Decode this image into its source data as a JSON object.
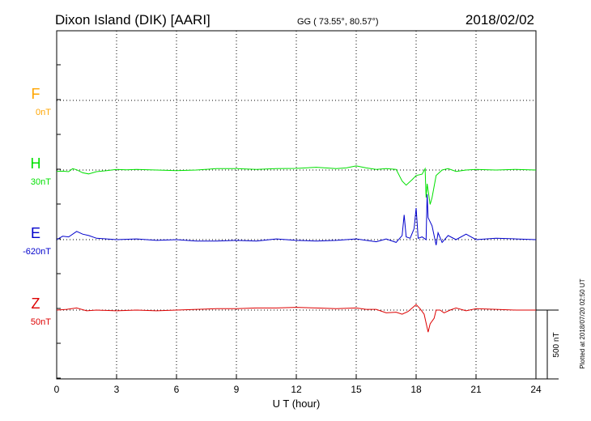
{
  "header": {
    "station": "Dixon Island (DIK)  [AARI]",
    "coords": "GG ( 73.55°,  80.57°)",
    "date": "2018/02/02"
  },
  "footer": {
    "plotted": "Plotted at 2018/07/20 02:50 UT"
  },
  "colors": {
    "F": "#ffa500",
    "H": "#00e000",
    "E": "#0000cc",
    "Z": "#dd0000",
    "grid": "#000000"
  },
  "chart_data": {
    "type": "line",
    "xlabel": "U T (hour)",
    "xlim": [
      0,
      24
    ],
    "x_ticks": [
      "0",
      "3",
      "6",
      "9",
      "12",
      "15",
      "18",
      "21",
      "24"
    ],
    "scale_label": "500 nT",
    "scale_nT": 500,
    "series": [
      {
        "name": "F",
        "baseline_label": "0nT",
        "x": [],
        "values": []
      },
      {
        "name": "H",
        "baseline_label": "30nT",
        "x": [
          0,
          0.3,
          0.6,
          0.8,
          1.0,
          1.3,
          1.6,
          2.0,
          2.5,
          3.0,
          3.5,
          4.0,
          5.0,
          6.0,
          7.0,
          8.0,
          9.0,
          10.0,
          11.0,
          12.0,
          13.0,
          14.0,
          14.5,
          15.0,
          15.5,
          16.0,
          16.5,
          17.0,
          17.3,
          17.5,
          17.8,
          18.0,
          18.3,
          18.45,
          18.5,
          18.55,
          18.7,
          18.8,
          18.9,
          19.0,
          19.3,
          19.6,
          20.0,
          20.5,
          21.0,
          22.0,
          23.0,
          24.0
        ],
        "values": [
          -10,
          -8,
          -12,
          10,
          2,
          -20,
          -28,
          -12,
          -5,
          5,
          2,
          5,
          0,
          -5,
          0,
          10,
          10,
          5,
          10,
          12,
          20,
          10,
          15,
          30,
          15,
          5,
          10,
          5,
          -80,
          -110,
          -70,
          -40,
          -30,
          10,
          -200,
          -100,
          -250,
          -200,
          -120,
          -40,
          0,
          10,
          -10,
          0,
          5,
          0,
          5,
          0
        ]
      },
      {
        "name": "E",
        "baseline_label": "-620nT",
        "x": [
          0,
          0.3,
          0.6,
          1.0,
          1.3,
          1.6,
          2.0,
          2.5,
          3.0,
          4.0,
          5.0,
          6.0,
          7.0,
          8.0,
          9.0,
          10.0,
          11.0,
          12.0,
          13.0,
          14.0,
          15.0,
          16.0,
          16.5,
          17.0,
          17.3,
          17.4,
          17.5,
          17.7,
          17.9,
          18.0,
          18.1,
          18.3,
          18.5,
          18.55,
          18.6,
          18.8,
          19.0,
          19.1,
          19.3,
          19.6,
          20.0,
          20.5,
          21.0,
          22.0,
          23.0,
          24.0
        ],
        "values": [
          0,
          25,
          20,
          60,
          40,
          30,
          10,
          5,
          0,
          5,
          -5,
          0,
          -10,
          -10,
          -5,
          -10,
          5,
          -5,
          -10,
          -5,
          5,
          -15,
          5,
          -20,
          30,
          180,
          20,
          10,
          80,
          230,
          10,
          20,
          0,
          330,
          160,
          100,
          -40,
          50,
          -20,
          30,
          0,
          40,
          0,
          10,
          5,
          0
        ]
      },
      {
        "name": "Z",
        "baseline_label": "50nT",
        "x": [
          0,
          0.5,
          1.0,
          1.5,
          2.0,
          3.0,
          4.0,
          5.0,
          6.0,
          7.0,
          8.0,
          9.0,
          10.0,
          11.0,
          12.0,
          13.0,
          14.0,
          15.0,
          15.5,
          16.0,
          16.5,
          17.0,
          17.3,
          17.6,
          18.0,
          18.2,
          18.4,
          18.6,
          18.7,
          18.9,
          19.0,
          19.2,
          19.4,
          19.7,
          20.0,
          20.5,
          21.0,
          22.0,
          23.0,
          24.0
        ],
        "values": [
          0,
          5,
          15,
          -5,
          0,
          -5,
          0,
          -5,
          0,
          5,
          10,
          10,
          15,
          15,
          20,
          15,
          10,
          15,
          5,
          5,
          -20,
          -15,
          -30,
          -10,
          40,
          10,
          -30,
          -160,
          -100,
          -60,
          0,
          0,
          -20,
          0,
          15,
          -5,
          10,
          5,
          0,
          0
        ]
      }
    ]
  }
}
